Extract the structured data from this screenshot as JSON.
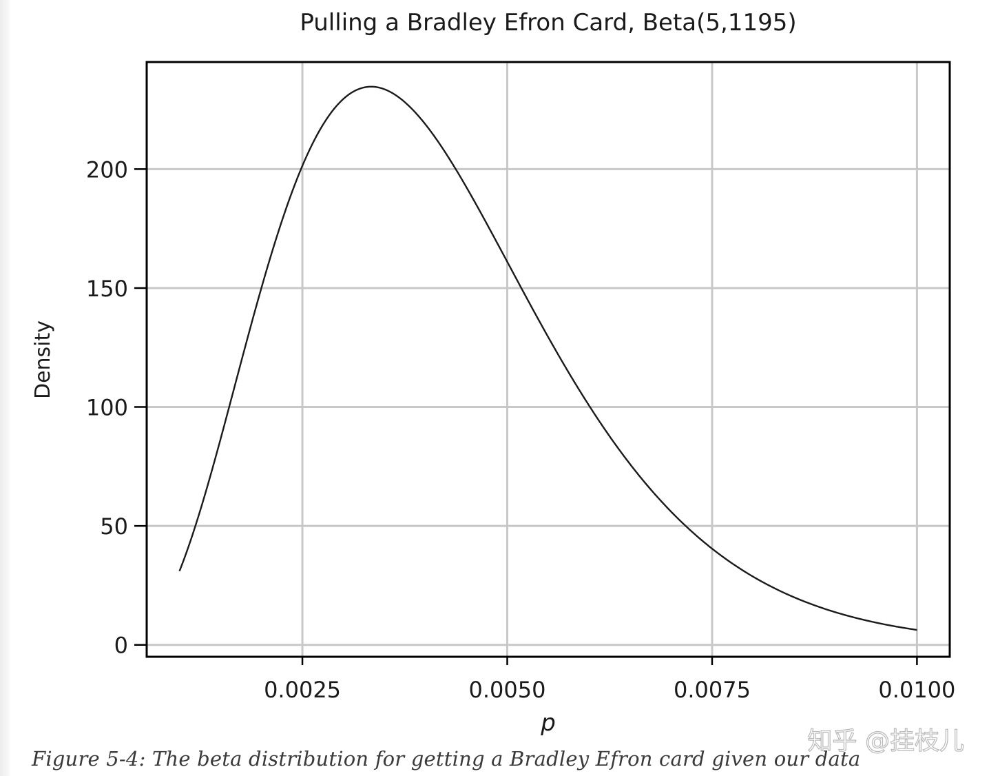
{
  "chart_data": {
    "type": "line",
    "title": "Pulling a Bradley Efron Card, Beta(5,1195)",
    "xlabel": "p",
    "ylabel": "Density",
    "xlim": [
      0.0006,
      0.0104
    ],
    "ylim": [
      -5,
      245
    ],
    "x_ticks": [
      0.0025,
      0.005,
      0.0075,
      0.01
    ],
    "x_tick_labels": [
      "0.0025",
      "0.0050",
      "0.0075",
      "0.0100"
    ],
    "y_ticks": [
      0,
      50,
      100,
      150,
      200
    ],
    "y_tick_labels": [
      "0",
      "50",
      "100",
      "150",
      "200"
    ],
    "grid": true,
    "series": [
      {
        "distribution": "beta",
        "alpha": 5,
        "beta": 1195,
        "x_range": [
          0.001,
          0.01
        ],
        "color": "#1a1a1a"
      }
    ]
  },
  "caption": "Figure 5-4: The beta distribution for getting a Bradley Efron card given our data",
  "watermark": "知乎 @挂枝儿"
}
